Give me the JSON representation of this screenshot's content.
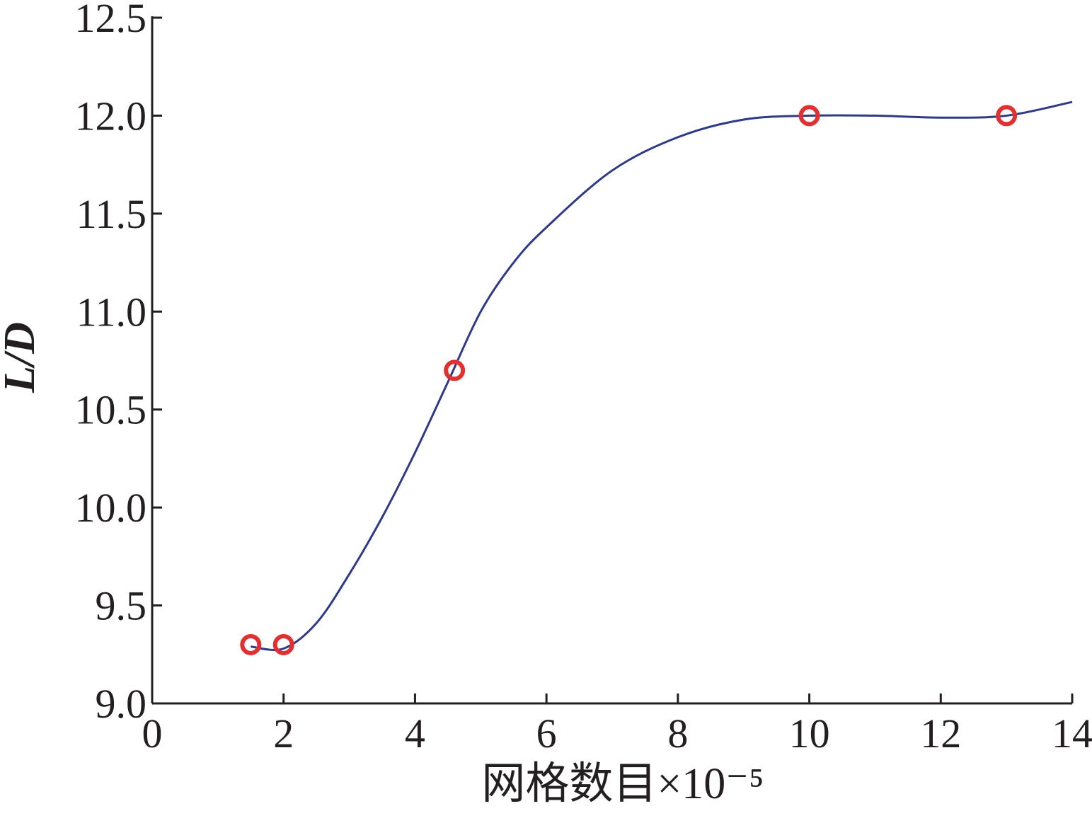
{
  "chart_data": {
    "type": "scatter",
    "x_label": "网格数目×10⁻⁵",
    "y_label": "L/D",
    "xlim": [
      0,
      14
    ],
    "xticks": [
      0,
      2,
      4,
      6,
      8,
      10,
      12,
      14
    ],
    "ylim": [
      9,
      12.5
    ],
    "yticks": [
      {
        "value": 9,
        "label": "9.0"
      },
      9.5,
      {
        "value": 10,
        "label": "10.0"
      },
      10.5,
      {
        "value": 11,
        "label": "11.0"
      },
      11.5,
      {
        "value": 12,
        "label": "12.0"
      },
      12.5
    ],
    "series": [
      {
        "type": "line",
        "color": "#2e3a87",
        "x": [
          1.5,
          2,
          2.5,
          3,
          3.5,
          4,
          4.5,
          5,
          5.5,
          6,
          7,
          8,
          9,
          10,
          11,
          12,
          13,
          14
        ],
        "values": [
          9.29,
          9.28,
          9.41,
          9.66,
          9.95,
          10.28,
          10.64,
          11.0,
          11.25,
          11.43,
          11.72,
          11.89,
          11.98,
          12.0,
          12.0,
          11.99,
          12.0,
          12.07
        ]
      },
      {
        "type": "scatter",
        "color": "#e03030",
        "x": [
          1.5,
          2,
          4.6,
          10,
          13
        ],
        "values": [
          9.3,
          9.3,
          10.7,
          12.0,
          12.0
        ]
      }
    ]
  }
}
